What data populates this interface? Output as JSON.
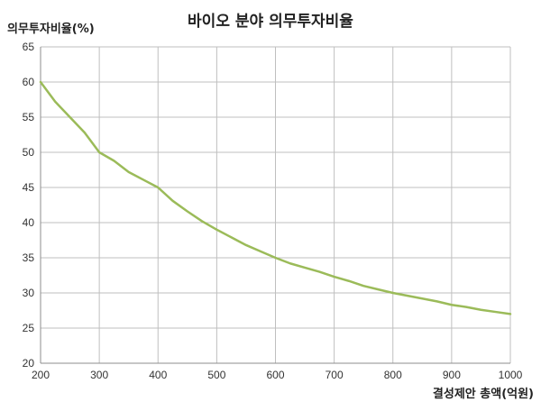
{
  "chart_data": {
    "type": "line",
    "title": "바이오 분야 의무투자비율",
    "ylabel": "의무투자비율(%)",
    "xlabel": "결성제안 총액(억원)",
    "xlim": [
      200,
      1000
    ],
    "ylim": [
      20,
      65
    ],
    "x_ticks": [
      200,
      300,
      400,
      500,
      600,
      700,
      800,
      900,
      1000
    ],
    "y_ticks": [
      20,
      25,
      30,
      35,
      40,
      45,
      50,
      55,
      60,
      65
    ],
    "grid": true,
    "line_color": "#9bbb59",
    "series": [
      {
        "x": [
          200,
          225,
          250,
          275,
          300,
          325,
          350,
          375,
          400,
          425,
          450,
          475,
          500,
          525,
          550,
          575,
          600,
          625,
          650,
          675,
          700,
          725,
          750,
          775,
          800,
          825,
          850,
          875,
          900,
          925,
          950,
          975,
          1000
        ],
        "values": [
          60,
          57.2,
          55,
          52.8,
          50,
          48.8,
          47.2,
          46.1,
          45,
          43.1,
          41.6,
          40.2,
          39,
          37.9,
          36.8,
          35.9,
          35,
          34.2,
          33.6,
          33.0,
          32.3,
          31.7,
          31.0,
          30.5,
          30,
          29.6,
          29.2,
          28.8,
          28.3,
          28.0,
          27.6,
          27.3,
          27
        ]
      }
    ]
  }
}
